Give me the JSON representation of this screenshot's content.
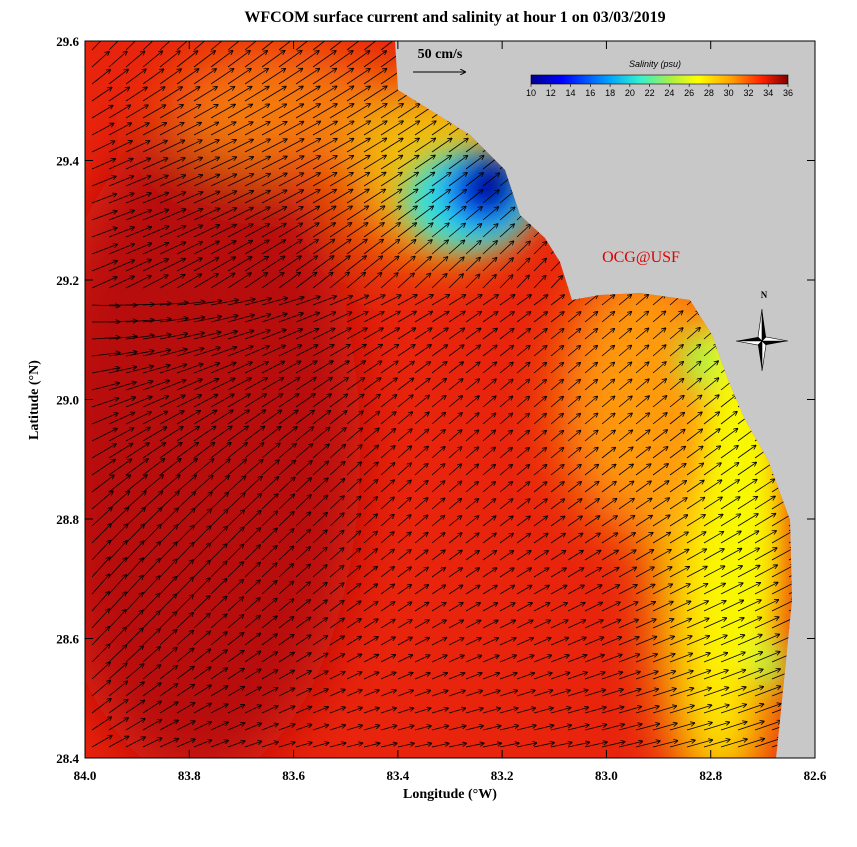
{
  "title": "WFCOM surface current and salinity at hour 1 on 03/03/2019",
  "x_axis": {
    "label": "Longitude (°W)",
    "lim": [
      84,
      82.6
    ],
    "ticks": [
      {
        "value": 84,
        "label": "84.0"
      },
      83.8,
      83.6,
      83.4,
      83.2,
      {
        "value": 83,
        "label": "83.0"
      },
      82.8,
      82.6
    ]
  },
  "y_axis": {
    "label": "Latitude (°N)",
    "lim": [
      28.4,
      29.6
    ],
    "ticks": [
      28.4,
      28.6,
      28.8,
      {
        "value": 29,
        "label": "29.0"
      },
      29.2,
      29.4,
      29.6
    ]
  },
  "colorbar": {
    "title": "Salinity (psu)",
    "lim": [
      10,
      36
    ],
    "ticks": [
      10,
      12,
      14,
      16,
      18,
      20,
      22,
      24,
      26,
      28,
      30,
      32,
      34,
      36
    ]
  },
  "scale_label": "50 cm/s",
  "credit": "OCG@USF",
  "north": "N"
}
